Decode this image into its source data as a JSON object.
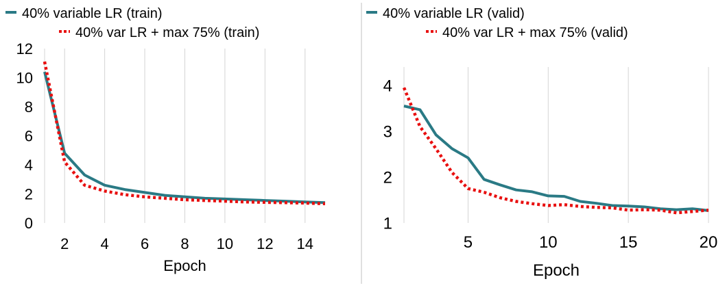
{
  "chart_data": [
    {
      "type": "line",
      "title": "",
      "xlabel": "Epoch",
      "ylabel": "",
      "xlim": [
        1,
        15
      ],
      "ylim": [
        0,
        12
      ],
      "x_ticks": [
        2,
        4,
        6,
        8,
        10,
        12,
        14
      ],
      "y_ticks": [
        0,
        2,
        4,
        6,
        8,
        10,
        12
      ],
      "grid": "vertical",
      "legend_position": "top",
      "x": [
        1,
        2,
        3,
        4,
        5,
        6,
        7,
        8,
        9,
        10,
        11,
        12,
        13,
        14,
        15
      ],
      "series": [
        {
          "name": "40% variable LR (train)",
          "color": "#2a7a85",
          "style": "solid",
          "values": [
            10.4,
            4.8,
            3.3,
            2.6,
            2.3,
            2.1,
            1.9,
            1.8,
            1.7,
            1.65,
            1.6,
            1.55,
            1.5,
            1.45,
            1.4
          ]
        },
        {
          "name": "40% var LR + max 75% (train)",
          "color": "#e81010",
          "style": "dotted",
          "values": [
            11.1,
            4.2,
            2.6,
            2.2,
            1.95,
            1.8,
            1.7,
            1.6,
            1.55,
            1.5,
            1.45,
            1.42,
            1.4,
            1.37,
            1.32
          ]
        }
      ]
    },
    {
      "type": "line",
      "title": "",
      "xlabel": "Epoch",
      "ylabel": "",
      "xlim": [
        1,
        20
      ],
      "ylim": [
        1,
        4.4
      ],
      "x_ticks": [
        5,
        10,
        15,
        20
      ],
      "y_ticks": [
        1,
        2,
        3,
        4
      ],
      "grid": "vertical",
      "legend_position": "top",
      "x": [
        1,
        2,
        3,
        4,
        5,
        6,
        7,
        8,
        9,
        10,
        11,
        12,
        13,
        14,
        15,
        16,
        17,
        18,
        19,
        20
      ],
      "series": [
        {
          "name": "40% variable LR (valid)",
          "color": "#2a7a85",
          "style": "solid",
          "values": [
            3.55,
            3.47,
            2.92,
            2.62,
            2.42,
            1.95,
            1.83,
            1.72,
            1.68,
            1.59,
            1.58,
            1.47,
            1.43,
            1.38,
            1.37,
            1.35,
            1.31,
            1.29,
            1.31,
            1.27
          ]
        },
        {
          "name": "40% var LR + max 75% (valid)",
          "color": "#e81010",
          "style": "dotted",
          "values": [
            3.95,
            3.1,
            2.62,
            2.1,
            1.75,
            1.67,
            1.55,
            1.47,
            1.42,
            1.38,
            1.4,
            1.36,
            1.34,
            1.33,
            1.28,
            1.29,
            1.28,
            1.22,
            1.25,
            1.28
          ]
        }
      ]
    }
  ]
}
